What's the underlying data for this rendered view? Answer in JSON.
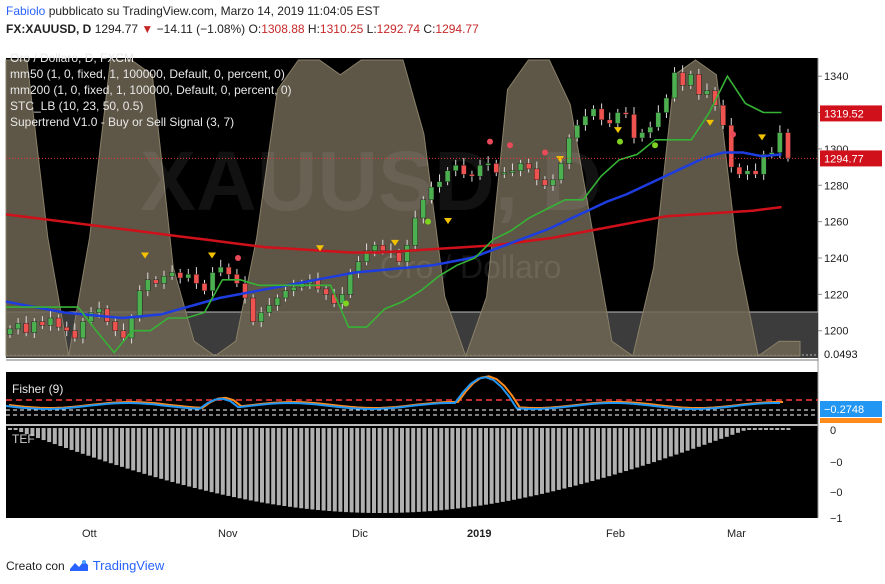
{
  "header": {
    "author": "Fabiolo",
    "published_text": "pubblicato su TradingView.com, Marzo 14, 2019 11:04:05 EST",
    "symbol": "FX:XAUUSD, D",
    "last_price": "1294.77",
    "change": "−14.11 (−1.08%)",
    "open_label": "O:",
    "open_value": "1308.88",
    "high_label": "H:",
    "high_value": "1310.25",
    "low_label": "L:",
    "low_value": "1292.74",
    "close_label": "C:",
    "close_value": "1294.77"
  },
  "legend": {
    "title": "Oro / Dollaro, D, FXCM",
    "mm50": "mm50 (1, 0, fixed, 1, 100000, Default, 0, percent, 0)",
    "mm200": "mm200 (1, 0, fixed, 1, 100000, Default, 0, percent, 0)",
    "stc": "STC_LB (10, 23, 50, 0.5)",
    "supertrend": "Supertrend V1.0 - Buy or Sell Signal (3, 7)"
  },
  "watermark": {
    "symbol": "XAUUSD, D",
    "name": "Oro / Dollaro"
  },
  "panes": {
    "fisher_label": "Fisher (9)",
    "tef_label": "TEF"
  },
  "footer": {
    "created_with": "Creato con",
    "brand": "TradingView"
  },
  "colors": {
    "background": "#000000",
    "stc_fill": "#6e6552",
    "candle_up": "#4caf50",
    "candle_down": "#ef5350",
    "mm50": "#1e3de0",
    "mm200": "#d0101a",
    "supertrend_up": "#36b336",
    "supertrend_down": "#d0101a",
    "fisher": "#2196f3",
    "fisher_trigger": "#ff8a1e",
    "tef_bars": "#b0b0b0"
  },
  "chart_data": {
    "type": "candlestick",
    "x_labels": [
      "Ott",
      "Nov",
      "Dic",
      "2019",
      "Feb",
      "Mar"
    ],
    "y_ticks": [
      1200,
      1220,
      1240,
      1260,
      1280,
      1300,
      1320,
      1340
    ],
    "ylim": [
      1185,
      1350
    ],
    "price_badges": {
      "supertrend": "1319.52",
      "last": "1294.77",
      "stc": "0.0493"
    },
    "fisher": {
      "title": "Fisher (9)",
      "value": "−0.2748"
    },
    "tef": {
      "title": "TEF",
      "ticks": [
        "0",
        "−0",
        "−0",
        "−1"
      ]
    },
    "series": [
      {
        "name": "Oro / Dollaro, D, FXCM",
        "close": [
          1201,
          1204,
          1199,
          1205,
          1203,
          1207,
          1202,
          1200,
          1196,
          1205,
          1210,
          1212,
          1205,
          1200,
          1196,
          1207,
          1222,
          1228,
          1226,
          1230,
          1232,
          1229,
          1231,
          1226,
          1222,
          1232,
          1235,
          1231,
          1226,
          1218,
          1205,
          1210,
          1214,
          1218,
          1222,
          1224,
          1226,
          1228,
          1223,
          1220,
          1215,
          1220,
          1232,
          1238,
          1244,
          1247,
          1244,
          1243,
          1238,
          1247,
          1262,
          1272,
          1279,
          1282,
          1288,
          1291,
          1286,
          1285,
          1291,
          1292,
          1287,
          1287,
          1288,
          1292,
          1289,
          1283,
          1280,
          1283,
          1292,
          1306,
          1313,
          1318,
          1322,
          1316,
          1314,
          1320,
          1319,
          1306,
          1309,
          1312,
          1320,
          1328,
          1342,
          1335,
          1341,
          1330,
          1332,
          1324,
          1313,
          1290,
          1286,
          1288,
          1286,
          1297,
          1298,
          1309,
          1295
        ]
      },
      {
        "name": "mm50",
        "values": [
          1216,
          1214,
          1212,
          1210,
          1209,
          1208,
          1207,
          1208,
          1209,
          1212,
          1215,
          1218,
          1220,
          1222,
          1224,
          1226,
          1228,
          1230,
          1232,
          1233,
          1234,
          1235,
          1236,
          1238,
          1240,
          1244,
          1248,
          1252,
          1256,
          1261,
          1266,
          1271,
          1275,
          1280,
          1285,
          1290,
          1295,
          1298,
          1298,
          1296,
          1297
        ]
      },
      {
        "name": "mm200",
        "values": [
          1264,
          1262,
          1260,
          1258,
          1256,
          1254,
          1252,
          1250,
          1248,
          1246,
          1245,
          1244,
          1243,
          1243,
          1244,
          1245,
          1246,
          1247,
          1249,
          1251,
          1254,
          1257,
          1260,
          1263,
          1264,
          1265,
          1266,
          1268
        ]
      },
      {
        "name": "Supertrend V1.0 - Buy or Sell Signal",
        "values": [
          1213,
          1213,
          1213,
          1213,
          1213,
          1200,
          1188,
          1200,
          1200,
          1207,
          1207,
          1210,
          1228,
          1228,
          1225,
          1225,
          1225,
          1225,
          1225,
          1202,
          1202,
          1212,
          1216,
          1222,
          1230,
          1236,
          1240,
          1250,
          1255,
          1262,
          1267,
          1272,
          1272,
          1285,
          1294,
          1297,
          1305,
          1305,
          1305,
          1320,
          1340,
          1325,
          1320,
          1320
        ]
      },
      {
        "name": "STC_LB",
        "values": [
          1.0,
          1.0,
          0.4,
          0.0,
          0.4,
          1.0,
          1.0,
          0.95,
          0.3,
          0.05,
          0.0,
          0.05,
          0.4,
          0.9,
          1.0,
          1.0,
          0.95,
          1.0,
          1.0,
          1.0,
          0.75,
          0.2,
          0.0,
          0.2,
          0.9,
          1.0,
          1.0,
          0.85,
          0.45,
          0.05,
          0.0,
          0.3,
          0.95,
          1.0,
          0.95,
          0.35,
          0.0,
          0.05,
          0.0493
        ]
      }
    ]
  }
}
